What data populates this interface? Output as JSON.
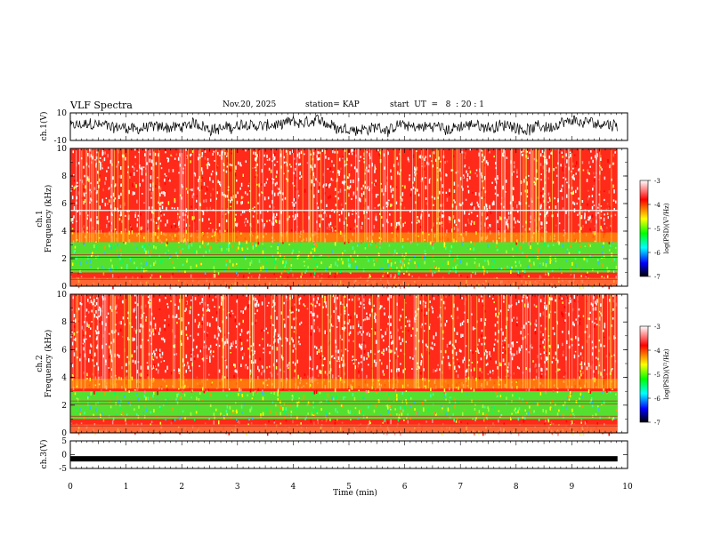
{
  "header": {
    "title": "VLF Spectra",
    "date": "Nov.20, 2025",
    "station": "station= KAP",
    "start": "start  UT  =   8  : 20 : 1"
  },
  "colors": {
    "spectrogram_scale": [
      "#000000",
      "#0000ff",
      "#00ffff",
      "#00ff00",
      "#ffff00",
      "#ff7f00",
      "#ff0000",
      "#ffffff"
    ]
  },
  "chart_data": [
    {
      "type": "line",
      "title": "ch.1 waveform",
      "ylabel": "ch.1(V)",
      "ylim": [
        -10,
        10
      ],
      "y_ticks": [
        "10",
        "-10"
      ],
      "x_range_min": [
        0,
        10
      ],
      "description_values": "noise-like signal roughly between -7 and 7 V"
    },
    {
      "type": "heatmap",
      "title": "ch.1 spectrogram",
      "ylabel": "ch.1 Frequency (kHz)",
      "ylim_khz": [
        0,
        10
      ],
      "y_ticks": [
        "0",
        "2",
        "4",
        "6",
        "8",
        "10"
      ],
      "colorbar_label": "log(PSD)(V²/Hz)",
      "colorbar_range": [
        -7,
        -3
      ],
      "colorbar_ticks": [
        "-3",
        "-4",
        "-5",
        "-6",
        "-7"
      ],
      "green_band_khz": [
        1.0,
        3.2
      ],
      "white_line_khz": 5.5
    },
    {
      "type": "heatmap",
      "title": "ch.2 spectrogram",
      "ylabel": "ch.2 Frequency (kHz)",
      "ylim_khz": [
        0,
        10
      ],
      "y_ticks": [
        "0",
        "2",
        "4",
        "6",
        "8",
        "10"
      ],
      "colorbar_label": "log(PSD)(V²/Hz)",
      "colorbar_range": [
        -7,
        -3
      ],
      "colorbar_ticks": [
        "-3",
        "-4",
        "-5",
        "-6",
        "-7"
      ],
      "green_band_khz": [
        1.0,
        3.0
      ]
    },
    {
      "type": "line",
      "title": "ch.3 waveform",
      "ylabel": "ch.3(V)",
      "ylim": [
        -5,
        5
      ],
      "y_ticks": [
        "5",
        "0",
        "-5"
      ],
      "level_v": -1.5,
      "xlabel": "Time  (min)",
      "x_ticks": [
        "0",
        "1",
        "2",
        "3",
        "4",
        "5",
        "6",
        "7",
        "8",
        "9",
        "10"
      ],
      "xlim": [
        0,
        10
      ],
      "data_end_min": 9.82
    }
  ],
  "labels": {
    "ch1_ylabel": "ch.1(V)",
    "spec1_ylabel_a": "ch.1",
    "spec1_ylabel_b": "Frequency  (kHz)",
    "spec2_ylabel_a": "ch.2",
    "spec2_ylabel_b": "Frequency  (kHz)",
    "ch3_ylabel": "ch.3(V)",
    "xlabel": "Time  (min)",
    "cbar_label": "log(PSD)(V²/Hz)"
  }
}
